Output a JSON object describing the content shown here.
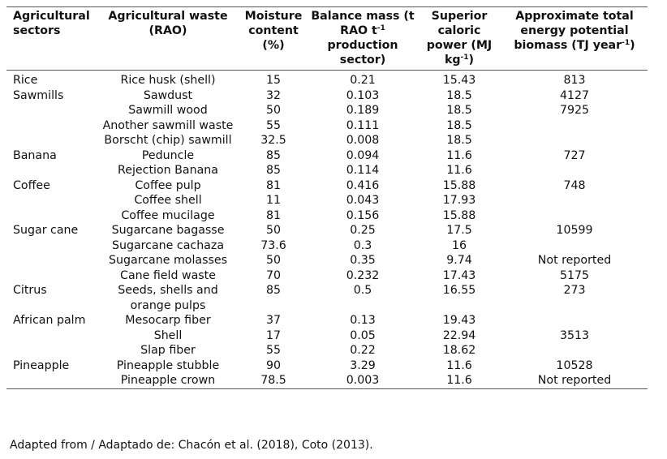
{
  "header": {
    "sector": "Agricultural sectors",
    "waste": "Agricultural waste (RAO)",
    "moisture": "Moisture content (%)",
    "balance_pre": "Balance mass (t RAO t",
    "balance_sup": "-1",
    "balance_post": " production sector)",
    "caloric_pre": "Superior caloric power (MJ kg",
    "caloric_sup": "-1",
    "caloric_post": ")",
    "energy_pre": "Approximate total energy potential biomass (TJ year",
    "energy_sup": "-1",
    "energy_post": ")"
  },
  "rows": [
    {
      "sector": "Rice",
      "waste": "Rice husk (shell)",
      "moisture": "15",
      "balance": "0.21",
      "caloric": "15.43",
      "energy": "813"
    },
    {
      "sector": "Sawmills",
      "waste": "Sawdust",
      "moisture": "32",
      "balance": "0.103",
      "caloric": "18.5",
      "energy": "4127"
    },
    {
      "sector": "",
      "waste": "Sawmill wood",
      "moisture": "50",
      "balance": "0.189",
      "caloric": "18.5",
      "energy": "7925"
    },
    {
      "sector": "",
      "waste": "Another sawmill waste",
      "moisture": "55",
      "balance": "0.111",
      "caloric": "18.5",
      "energy": ""
    },
    {
      "sector": "",
      "waste": "Borscht (chip) sawmill",
      "moisture": "32.5",
      "balance": "0.008",
      "caloric": "18.5",
      "energy": ""
    },
    {
      "sector": "Banana",
      "waste": "Peduncle",
      "moisture": "85",
      "balance": "0.094",
      "caloric": "11.6",
      "energy": "727"
    },
    {
      "sector": "",
      "waste": "Rejection Banana",
      "moisture": "85",
      "balance": "0.114",
      "caloric": "11.6",
      "energy": ""
    },
    {
      "sector": "Coffee",
      "waste": "Coffee pulp",
      "moisture": "81",
      "balance": "0.416",
      "caloric": "15.88",
      "energy": "748"
    },
    {
      "sector": "",
      "waste": "Coffee shell",
      "moisture": "11",
      "balance": "0.043",
      "caloric": "17.93",
      "energy": ""
    },
    {
      "sector": "",
      "waste": "Coffee mucilage",
      "moisture": "81",
      "balance": "0.156",
      "caloric": "15.88",
      "energy": ""
    },
    {
      "sector": "Sugar cane",
      "waste": "Sugarcane bagasse",
      "moisture": "50",
      "balance": "0.25",
      "caloric": "17.5",
      "energy": "10599"
    },
    {
      "sector": "",
      "waste": "Sugarcane cachaza",
      "moisture": "73.6",
      "balance": "0.3",
      "caloric": "16",
      "energy": ""
    },
    {
      "sector": "",
      "waste": "Sugarcane molasses",
      "moisture": "50",
      "balance": "0.35",
      "caloric": "9.74",
      "energy": "Not reported"
    },
    {
      "sector": "",
      "waste": "Cane field waste",
      "moisture": "70",
      "balance": "0.232",
      "caloric": "17.43",
      "energy": "5175"
    },
    {
      "sector": "Citrus",
      "waste": "Seeds, shells and orange pulps",
      "moisture": "85",
      "balance": "0.5",
      "caloric": "16.55",
      "energy": "273"
    },
    {
      "sector": "African palm",
      "waste": "Mesocarp fiber",
      "moisture": "37",
      "balance": "0.13",
      "caloric": "19.43",
      "energy": ""
    },
    {
      "sector": "",
      "waste": "Shell",
      "moisture": "17",
      "balance": "0.05",
      "caloric": "22.94",
      "energy": "3513"
    },
    {
      "sector": "",
      "waste": "Slap fiber",
      "moisture": "55",
      "balance": "0.22",
      "caloric": "18.62",
      "energy": ""
    },
    {
      "sector": "Pineapple",
      "waste": "Pineapple stubble",
      "moisture": "90",
      "balance": "3.29",
      "caloric": "11.6",
      "energy": "10528"
    },
    {
      "sector": "",
      "waste": "Pineapple crown",
      "moisture": "78.5",
      "balance": "0.003",
      "caloric": "11.6",
      "energy": "Not reported"
    }
  ],
  "footnote": "Adapted from / Adaptado de: Chacón et al. (2018), Coto (2013)."
}
